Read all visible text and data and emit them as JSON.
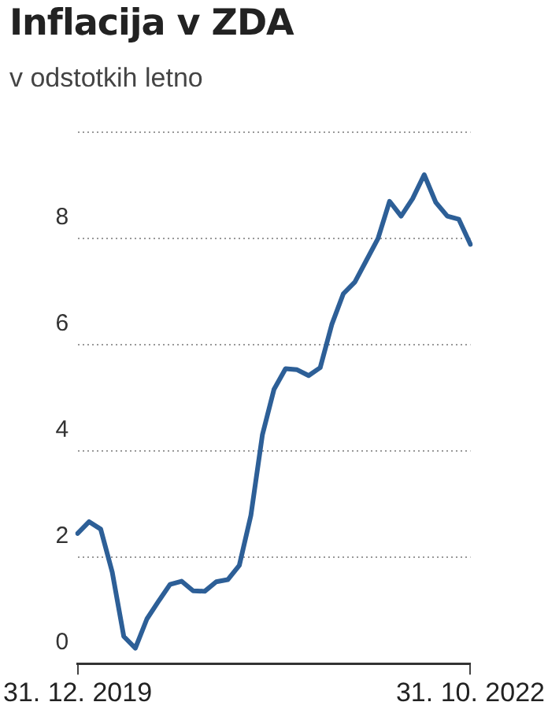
{
  "chart_data": {
    "type": "line",
    "title": "Inflacija v ZDA",
    "subtitle": "v odstotkih letno",
    "categories": [
      "31. 12. 2019",
      null,
      null,
      null,
      null,
      null,
      null,
      null,
      null,
      null,
      null,
      null,
      null,
      null,
      null,
      null,
      null,
      null,
      null,
      null,
      null,
      null,
      null,
      null,
      null,
      null,
      null,
      null,
      null,
      null,
      null,
      null,
      null,
      null,
      "31. 10. 2022"
    ],
    "values": [
      2.45,
      2.67,
      2.53,
      1.72,
      0.51,
      0.29,
      0.84,
      1.17,
      1.49,
      1.55,
      1.37,
      1.36,
      1.54,
      1.58,
      1.85,
      2.79,
      4.31,
      5.16,
      5.55,
      5.53,
      5.42,
      5.57,
      6.38,
      6.96,
      7.18,
      7.59,
      8.0,
      8.7,
      8.42,
      8.75,
      9.2,
      8.68,
      8.42,
      8.36,
      7.89
    ],
    "color": "#2d5f97",
    "ylim": [
      0,
      10
    ],
    "yticks": [
      0,
      2,
      4,
      6,
      8,
      {
        "value": 10,
        "label": null
      }
    ],
    "grid": "y",
    "legend": false,
    "marker": "none",
    "line_style": "solid"
  }
}
